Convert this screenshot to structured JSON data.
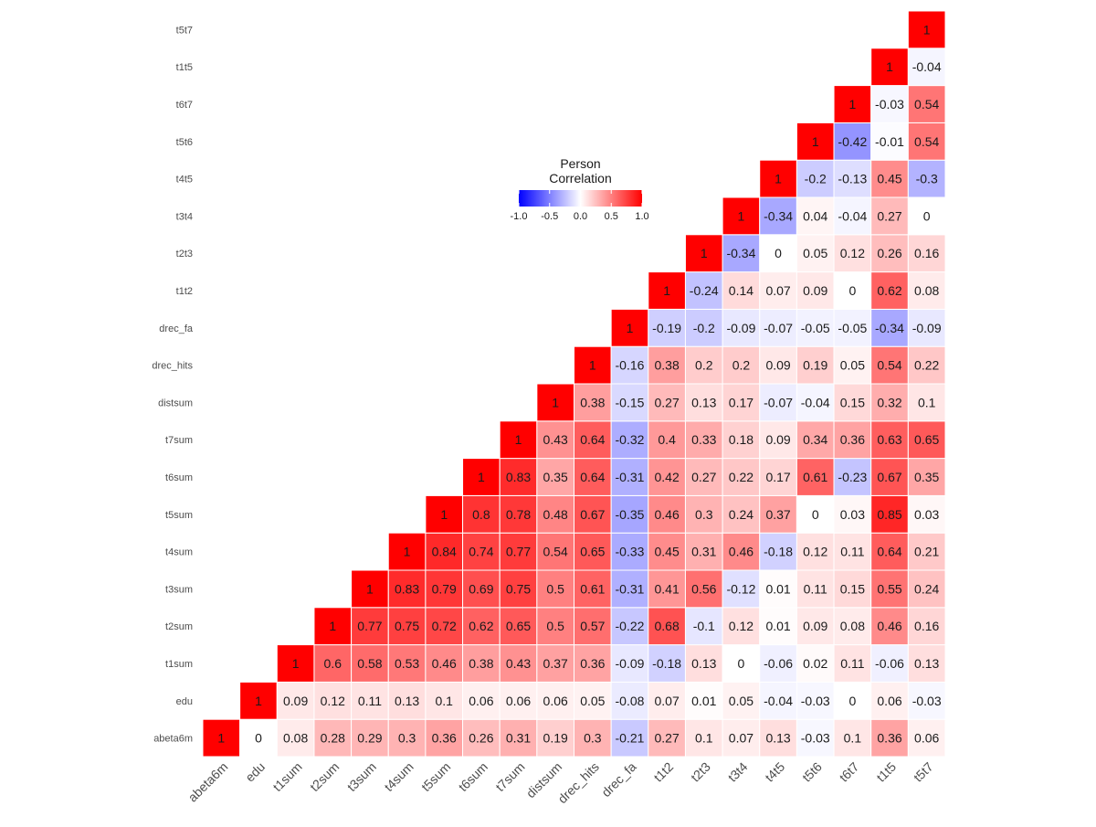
{
  "chart_data": {
    "type": "heatmap",
    "title": "",
    "variables": [
      "abeta6m",
      "edu",
      "t1sum",
      "t2sum",
      "t3sum",
      "t4sum",
      "t5sum",
      "t6sum",
      "t7sum",
      "distsum",
      "drec_hits",
      "drec_fa",
      "t1t2",
      "t2t3",
      "t3t4",
      "t4t5",
      "t5t6",
      "t6t7",
      "t1t5",
      "t5t7"
    ],
    "matrix": [
      [
        1,
        0,
        0.08,
        0.28,
        0.29,
        0.3,
        0.36,
        0.26,
        0.31,
        0.19,
        0.3,
        -0.21,
        0.27,
        0.1,
        0.07,
        0.13,
        -0.03,
        0.1,
        0.36,
        0.06
      ],
      [
        null,
        1,
        0.09,
        0.12,
        0.11,
        0.13,
        0.1,
        0.06,
        0.06,
        0.06,
        0.05,
        -0.08,
        0.07,
        0.01,
        0.05,
        -0.04,
        -0.03,
        0,
        0.06,
        -0.03
      ],
      [
        null,
        null,
        1,
        0.6,
        0.58,
        0.53,
        0.46,
        0.38,
        0.43,
        0.37,
        0.36,
        -0.09,
        -0.18,
        0.13,
        0,
        -0.06,
        0.02,
        0.11,
        -0.06,
        0.13
      ],
      [
        null,
        null,
        null,
        1,
        0.77,
        0.75,
        0.72,
        0.62,
        0.65,
        0.5,
        0.57,
        -0.22,
        0.68,
        -0.1,
        0.12,
        0.01,
        0.09,
        0.08,
        0.46,
        0.16
      ],
      [
        null,
        null,
        null,
        null,
        1,
        0.83,
        0.79,
        0.69,
        0.75,
        0.5,
        0.61,
        -0.31,
        0.41,
        0.56,
        -0.12,
        0.01,
        0.11,
        0.15,
        0.55,
        0.24
      ],
      [
        null,
        null,
        null,
        null,
        null,
        1,
        0.84,
        0.74,
        0.77,
        0.54,
        0.65,
        -0.33,
        0.45,
        0.31,
        0.46,
        -0.18,
        0.12,
        0.11,
        0.64,
        0.21
      ],
      [
        null,
        null,
        null,
        null,
        null,
        null,
        1,
        0.8,
        0.78,
        0.48,
        0.67,
        -0.35,
        0.46,
        0.3,
        0.24,
        0.37,
        0,
        0.03,
        0.85,
        0.03
      ],
      [
        null,
        null,
        null,
        null,
        null,
        null,
        null,
        1,
        0.83,
        0.35,
        0.64,
        -0.31,
        0.42,
        0.27,
        0.22,
        0.17,
        0.61,
        -0.23,
        0.67,
        0.35
      ],
      [
        null,
        null,
        null,
        null,
        null,
        null,
        null,
        null,
        1,
        0.43,
        0.64,
        -0.32,
        0.4,
        0.33,
        0.18,
        0.09,
        0.34,
        0.36,
        0.63,
        0.65
      ],
      [
        null,
        null,
        null,
        null,
        null,
        null,
        null,
        null,
        null,
        1,
        0.38,
        -0.15,
        0.27,
        0.13,
        0.17,
        -0.07,
        -0.04,
        0.15,
        0.32,
        0.1
      ],
      [
        null,
        null,
        null,
        null,
        null,
        null,
        null,
        null,
        null,
        null,
        1,
        -0.16,
        0.38,
        0.2,
        0.2,
        0.09,
        0.19,
        0.05,
        0.54,
        0.22
      ],
      [
        null,
        null,
        null,
        null,
        null,
        null,
        null,
        null,
        null,
        null,
        null,
        1,
        -0.19,
        -0.2,
        -0.09,
        -0.07,
        -0.05,
        -0.05,
        -0.34,
        -0.09
      ],
      [
        null,
        null,
        null,
        null,
        null,
        null,
        null,
        null,
        null,
        null,
        null,
        null,
        1,
        -0.24,
        0.14,
        0.07,
        0.09,
        0,
        0.62,
        0.08
      ],
      [
        null,
        null,
        null,
        null,
        null,
        null,
        null,
        null,
        null,
        null,
        null,
        null,
        null,
        1,
        -0.34,
        0,
        0.05,
        0.12,
        0.26,
        0.16
      ],
      [
        null,
        null,
        null,
        null,
        null,
        null,
        null,
        null,
        null,
        null,
        null,
        null,
        null,
        null,
        1,
        -0.34,
        0.04,
        -0.04,
        0.27,
        0
      ],
      [
        null,
        null,
        null,
        null,
        null,
        null,
        null,
        null,
        null,
        null,
        null,
        null,
        null,
        null,
        null,
        1,
        -0.2,
        -0.13,
        0.45,
        -0.3
      ],
      [
        null,
        null,
        null,
        null,
        null,
        null,
        null,
        null,
        null,
        null,
        null,
        null,
        null,
        null,
        null,
        null,
        1,
        -0.42,
        -0.01,
        0.54
      ],
      [
        null,
        null,
        null,
        null,
        null,
        null,
        null,
        null,
        null,
        null,
        null,
        null,
        null,
        null,
        null,
        null,
        null,
        1,
        -0.03,
        0.54
      ],
      [
        null,
        null,
        null,
        null,
        null,
        null,
        null,
        null,
        null,
        null,
        null,
        null,
        null,
        null,
        null,
        null,
        null,
        null,
        1,
        -0.04
      ],
      [
        null,
        null,
        null,
        null,
        null,
        null,
        null,
        null,
        null,
        null,
        null,
        null,
        null,
        null,
        null,
        null,
        null,
        null,
        null,
        1
      ]
    ],
    "legend": {
      "title_lines": [
        "Person",
        "Correlation"
      ],
      "limits": [
        -1,
        1
      ],
      "ticks": [
        -1.0,
        -0.5,
        0.0,
        0.5,
        1.0
      ],
      "tick_labels": [
        "-1.0",
        "-0.5",
        "0.0",
        "0.5",
        "1.0"
      ],
      "low_color": "#0000FF",
      "mid_color": "#FFFFFF",
      "high_color": "#FF0000"
    },
    "grid": false,
    "cell_border_color": "#FFFFFF"
  }
}
